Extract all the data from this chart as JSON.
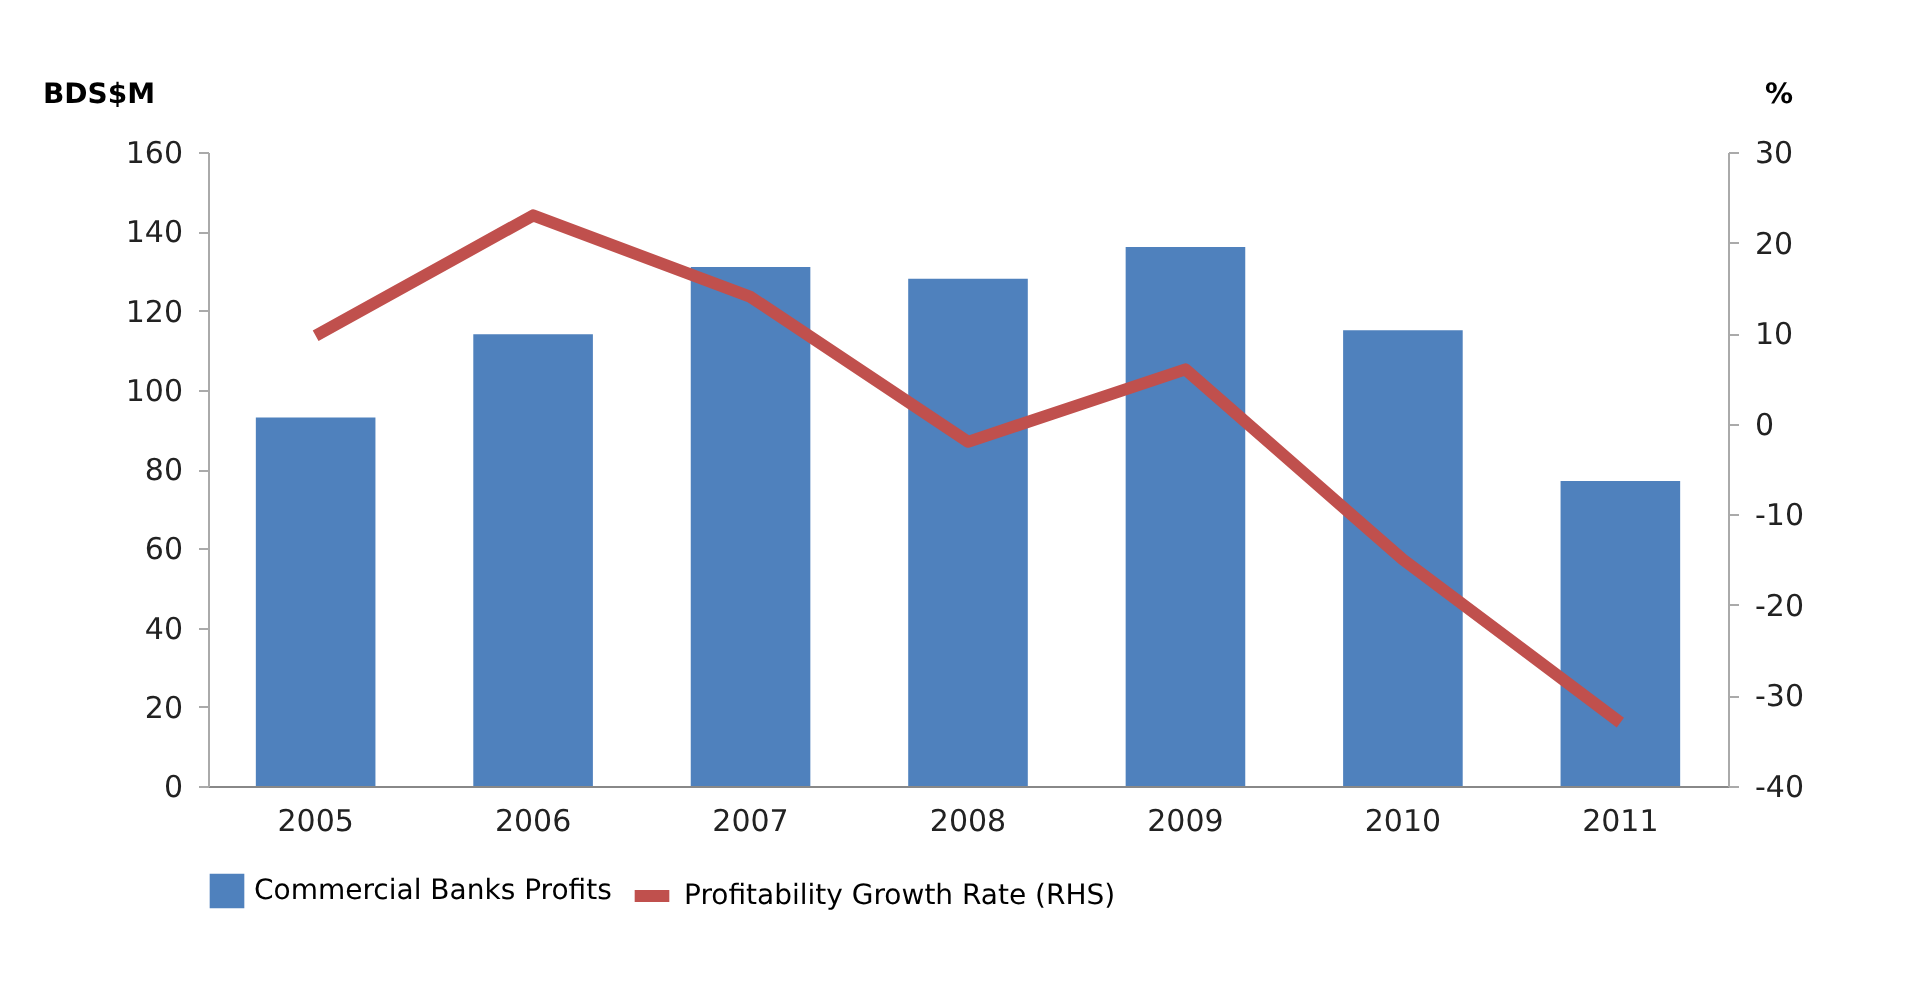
{
  "chart_data": {
    "type": "bar",
    "ylabel": "BDS$M",
    "y2label": "%",
    "categories": [
      "2005",
      "2006",
      "2007",
      "2008",
      "2009",
      "2010",
      "2011"
    ],
    "series": [
      {
        "name": "Commercial Banks Profits",
        "color": "#4f81bd",
        "values": [
          93,
          114,
          131,
          128,
          136,
          115,
          77
        ]
      },
      {
        "name": "Profitability Growth Rate (RHS)",
        "type": "line",
        "axis": "y2",
        "color": "#c0504d",
        "values": [
          9.7,
          23,
          14,
          -2,
          6,
          -15,
          -33
        ]
      }
    ],
    "ylim": [
      0,
      160
    ],
    "yticks": [
      0,
      20,
      40,
      60,
      80,
      100,
      120,
      140,
      160
    ],
    "y2lim": [
      -40,
      30
    ],
    "y2ticks": [
      -40,
      -30,
      -20,
      -10,
      0,
      10,
      20,
      30
    ],
    "grid": false,
    "legend": "bottom",
    "marker": "none",
    "line_style": "solid"
  }
}
